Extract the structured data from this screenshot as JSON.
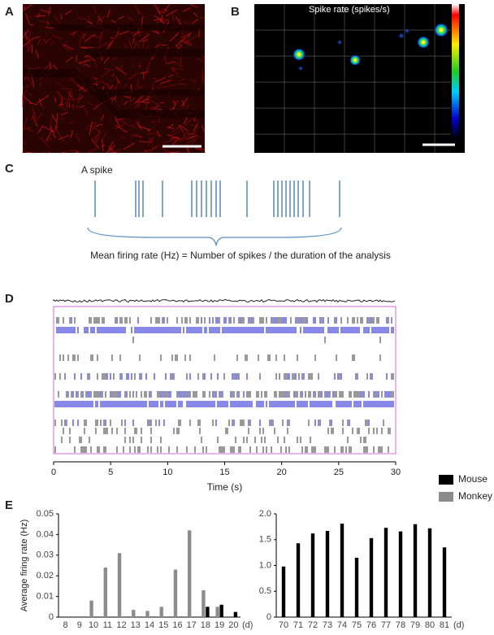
{
  "panel_labels": [
    "A",
    "B",
    "C",
    "D",
    "E"
  ],
  "panel_b": {
    "title": "Spike rate (spikes/s)"
  },
  "panel_c": {
    "spike_label": "A spike",
    "formula": "Mean firing rate (Hz) = Number of spikes / the duration of the analysis"
  },
  "chart_data": [
    {
      "type": "raster",
      "xlabel": "Time (s)",
      "xlim": [
        0,
        30
      ],
      "xticks": [
        0,
        5,
        10,
        15,
        20,
        25,
        30
      ]
    },
    {
      "type": "bar",
      "ylabel": "Average firing rate (Hz)",
      "x_unit": "(d)",
      "categories": [
        "8",
        "9",
        "10",
        "11",
        "12",
        "13",
        "14",
        "15",
        "16",
        "17",
        "18",
        "19",
        "20"
      ],
      "series": [
        {
          "name": "Mouse",
          "color": "#000000",
          "values": [
            null,
            null,
            null,
            null,
            null,
            null,
            null,
            null,
            null,
            null,
            0.005,
            0.006,
            0.0025
          ]
        },
        {
          "name": "Monkey",
          "color": "#8c8c8c",
          "values": [
            null,
            null,
            0.008,
            0.024,
            0.031,
            0.0035,
            0.003,
            0.005,
            0.023,
            0.042,
            0.013,
            0.005,
            null
          ]
        }
      ],
      "ylim": [
        0,
        0.05
      ],
      "yticks": [
        0,
        0.01,
        0.02,
        0.03,
        0.04,
        0.05
      ]
    },
    {
      "type": "bar",
      "x_unit": "(d)",
      "categories": [
        "70",
        "71",
        "72",
        "73",
        "74",
        "75",
        "76",
        "77",
        "78",
        "79",
        "80",
        "81"
      ],
      "color": "#000000",
      "values": [
        0.98,
        1.43,
        1.62,
        1.67,
        1.81,
        1.15,
        1.53,
        1.73,
        1.66,
        1.8,
        1.72,
        1.35
      ],
      "ylim": [
        0,
        2
      ],
      "yticks": [
        0,
        0.5,
        {
          "value": 1,
          "label": "1.0"
        },
        1.5,
        {
          "value": 2,
          "label": "2.0"
        }
      ]
    }
  ]
}
